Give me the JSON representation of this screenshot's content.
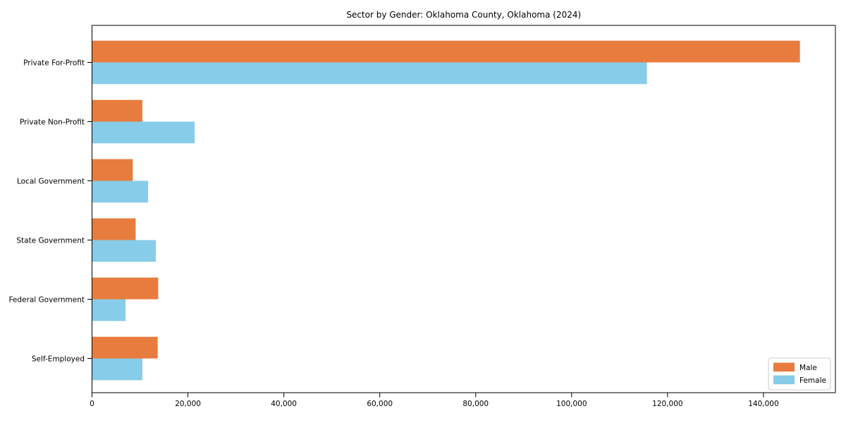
{
  "chart_data": {
    "type": "bar",
    "orientation": "horizontal",
    "title": "Sector by Gender: Oklahoma County, Oklahoma (2024)",
    "xlabel": "",
    "ylabel": "",
    "categories": [
      "Private For-Profit",
      "Private Non-Profit",
      "Local Government",
      "State Government",
      "Federal Government",
      "Self-Employed"
    ],
    "series": [
      {
        "name": "Male",
        "color": "#e87c3e",
        "values": [
          147600,
          10500,
          8500,
          9100,
          13800,
          13700
        ]
      },
      {
        "name": "Female",
        "color": "#87cce8",
        "values": [
          115700,
          21400,
          11700,
          13300,
          7000,
          10500
        ]
      }
    ],
    "xlim": [
      0,
      155000
    ],
    "xticks": [
      0,
      20000,
      40000,
      60000,
      80000,
      100000,
      120000,
      140000
    ],
    "xtick_labels": [
      "0",
      "20,000",
      "40,000",
      "60,000",
      "80,000",
      "100,000",
      "120,000",
      "140,000"
    ],
    "grid": false,
    "legend_position": "lower right",
    "legend_border_color": "#cccccc",
    "axis_color": "#000000"
  }
}
